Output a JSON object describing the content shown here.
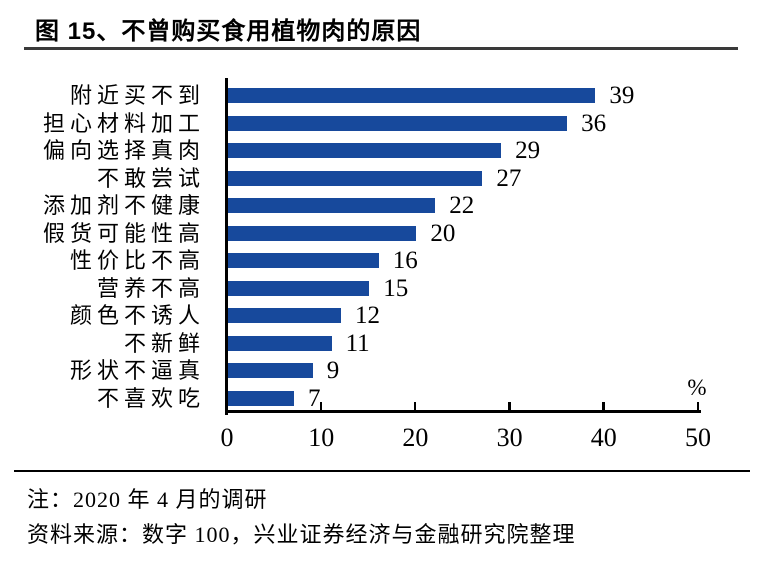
{
  "title": "图 15、不曾购买食用植物肉的原因",
  "chart_data": {
    "type": "bar",
    "orientation": "horizontal",
    "figure_label": "图 15",
    "title": "不曾购买食用植物肉的原因",
    "categories": [
      "附近买不到",
      "担心材料加工",
      "偏向选择真肉",
      "不敢尝试",
      "添加剂不健康",
      "假货可能性高",
      "性价比不高",
      "营养不高",
      "颜色不诱人",
      "不新鲜",
      "形状不逼真",
      "不喜欢吃"
    ],
    "values": [
      39,
      36,
      29,
      27,
      22,
      20,
      16,
      15,
      12,
      11,
      9,
      7
    ],
    "x_ticks": [
      0,
      10,
      20,
      30,
      40,
      50
    ],
    "xlim": [
      0,
      50
    ],
    "unit_label": "%",
    "bar_color": "#17499C",
    "axis_color": "#000000",
    "value_labels_shown": true,
    "grid": false,
    "legend": "none"
  },
  "note": "注：2020 年 4 月的调研",
  "source": "资料来源：数字 100，兴业证券经济与金融研究院整理"
}
